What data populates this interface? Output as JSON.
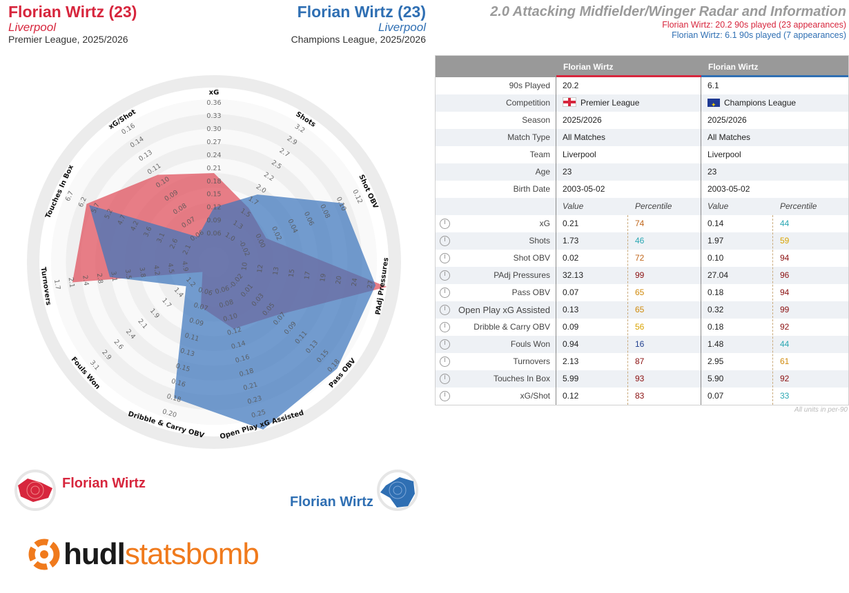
{
  "header": {
    "left": {
      "name": "Florian Wirtz (23)",
      "team": "Liverpool",
      "competition": "Premier League, 2025/2026"
    },
    "right": {
      "name": "Florian Wirtz (23)",
      "team": "Liverpool",
      "competition": "Champions League, 2025/2026"
    }
  },
  "title": {
    "main": "2.0 Attacking Midfielder/Winger Radar and Information",
    "line1": "Florian Wirtz: 20.2 90s played (23 appearances)",
    "line2": "Florian Wirtz: 6.1 90s played (7 appearances)"
  },
  "colors": {
    "red": "#d7263d",
    "blue": "#2f6fb3",
    "red_fill": "#e0535f",
    "blue_fill": "#3d76bd"
  },
  "legend": {
    "player1": "Florian Wirtz",
    "player2": "Florian Wirtz"
  },
  "logo": {
    "part1": "hudl",
    "part2": "statsbomb"
  },
  "chart_data": {
    "type": "radar",
    "axes": [
      "xG",
      "Shots",
      "Shot OBV",
      "PAdj Pressures",
      "Pass OBV",
      "Open Play xG Assisted",
      "Dribble & Carry OBV",
      "Fouls Won",
      "Turnovers",
      "Touches In Box",
      "xG/Shot"
    ],
    "ticks": [
      [
        "0.06",
        "0.09",
        "0.12",
        "0.15",
        "0.18",
        "0.21",
        "0.24",
        "0.27",
        "0.30",
        "0.33",
        "0.36"
      ],
      [
        "1.0",
        "1.3",
        "1.5",
        "1.7",
        "2.0",
        "2.2",
        "2.5",
        "2.7",
        "2.9",
        "3.2"
      ],
      [
        "-0.02",
        "0.00",
        "0.02",
        "0.04",
        "0.06",
        "0.08",
        "0.10",
        "0.12"
      ],
      [
        "10",
        "12",
        "13",
        "15",
        "17",
        "19",
        "20",
        "24",
        "27"
      ],
      [
        "-0.02",
        "0.01",
        "0.03",
        "0.05",
        "0.07",
        "0.09",
        "0.11",
        "0.13",
        "0.15",
        "0.18"
      ],
      [
        "0.06",
        "0.08",
        "0.10",
        "0.12",
        "0.14",
        "0.16",
        "0.18",
        "0.21",
        "0.23",
        "0.25"
      ],
      [
        "0.06",
        "0.07",
        "0.09",
        "0.11",
        "0.13",
        "0.15",
        "0.16",
        "0.18",
        "0.20"
      ],
      [
        "1.2",
        "1.4",
        "1.7",
        "1.9",
        "2.1",
        "2.4",
        "2.6",
        "2.9",
        "3.1"
      ],
      [
        "4.9",
        "4.5",
        "4.2",
        "3.8",
        "3.5",
        "3.1",
        "2.8",
        "2.4",
        "2.1",
        "1.7"
      ],
      [
        "2.1",
        "2.6",
        "3.1",
        "3.6",
        "4.2",
        "4.7",
        "5.2",
        "5.7",
        "6.2",
        "6.7"
      ],
      [
        "0.06",
        "0.07",
        "0.08",
        "0.09",
        "0.10",
        "0.11",
        "0.13",
        "0.14",
        "0.16"
      ]
    ],
    "series": [
      {
        "name": "Florian Wirtz",
        "competition": "Premier League",
        "values": [
          0.21,
          1.73,
          0.02,
          32.13,
          0.07,
          0.13,
          0.09,
          0.94,
          2.13,
          5.99,
          0.12
        ],
        "percentiles": [
          74,
          46,
          72,
          99,
          65,
          65,
          56,
          16,
          87,
          93,
          83
        ]
      },
      {
        "name": "Florian Wirtz",
        "competition": "Champions League",
        "values": [
          0.14,
          1.97,
          0.1,
          27.04,
          0.18,
          0.32,
          0.18,
          1.48,
          2.95,
          5.9,
          0.07
        ],
        "percentiles": [
          44,
          59,
          94,
          96,
          94,
          99,
          92,
          44,
          61,
          92,
          33
        ]
      }
    ]
  },
  "table": {
    "col1": "Florian Wirtz",
    "col2": "Florian Wirtz",
    "info": [
      {
        "label": "90s Played",
        "v1": "20.2",
        "v2": "6.1"
      },
      {
        "label": "Competition",
        "v1": "Premier League",
        "v2": "Champions League"
      },
      {
        "label": "Season",
        "v1": "2025/2026",
        "v2": "2025/2026"
      },
      {
        "label": "Match Type",
        "v1": "All Matches",
        "v2": "All Matches"
      },
      {
        "label": "Team",
        "v1": "Liverpool",
        "v2": "Liverpool"
      },
      {
        "label": "Age",
        "v1": "23",
        "v2": "23"
      },
      {
        "label": "Birth Date",
        "v1": "2003-05-02",
        "v2": "2003-05-02"
      }
    ],
    "subheaders": {
      "value": "Value",
      "percentile": "Percentile"
    },
    "stats": [
      {
        "label": "xG",
        "v1": "0.21",
        "p1": "74",
        "c1": "#c0661b",
        "v2": "0.14",
        "p2": "44",
        "c2": "#2aa7b3"
      },
      {
        "label": "Shots",
        "v1": "1.73",
        "p1": "46",
        "c1": "#2aa7b3",
        "v2": "1.97",
        "p2": "59",
        "c2": "#d9a300"
      },
      {
        "label": "Shot OBV",
        "v1": "0.02",
        "p1": "72",
        "c1": "#c0661b",
        "v2": "0.10",
        "p2": "94",
        "c2": "#8b1010"
      },
      {
        "label": "PAdj Pressures",
        "v1": "32.13",
        "p1": "99",
        "c1": "#8b1010",
        "v2": "27.04",
        "p2": "96",
        "c2": "#8b1010"
      },
      {
        "label": "Pass OBV",
        "v1": "0.07",
        "p1": "65",
        "c1": "#d08a0c",
        "v2": "0.18",
        "p2": "94",
        "c2": "#8b1010"
      },
      {
        "label": "Open Play xG Assisted",
        "v1": "0.13",
        "p1": "65",
        "c1": "#d08a0c",
        "v2": "0.32",
        "p2": "99",
        "c2": "#8b1010"
      },
      {
        "label": "Dribble & Carry OBV",
        "v1": "0.09",
        "p1": "56",
        "c1": "#d9a300",
        "v2": "0.18",
        "p2": "92",
        "c2": "#8b1010"
      },
      {
        "label": "Fouls Won",
        "v1": "0.94",
        "p1": "16",
        "c1": "#1f3f8f",
        "v2": "1.48",
        "p2": "44",
        "c2": "#2aa7b3"
      },
      {
        "label": "Turnovers",
        "v1": "2.13",
        "p1": "87",
        "c1": "#8b1010",
        "v2": "2.95",
        "p2": "61",
        "c2": "#d08a0c"
      },
      {
        "label": "Touches In Box",
        "v1": "5.99",
        "p1": "93",
        "c1": "#8b1010",
        "v2": "5.90",
        "p2": "92",
        "c2": "#8b1010"
      },
      {
        "label": "xG/Shot",
        "v1": "0.12",
        "p1": "83",
        "c1": "#8b1010",
        "v2": "0.07",
        "p2": "33",
        "c2": "#2aa7b3"
      }
    ],
    "footnote": "All units in per-90"
  }
}
